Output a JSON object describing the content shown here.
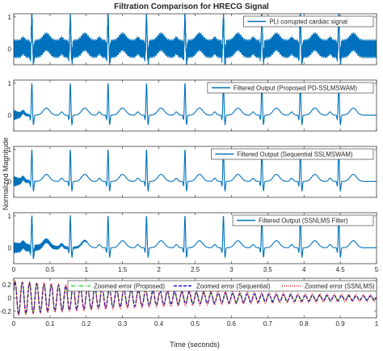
{
  "figure": {
    "title": "Filtration Comparison for HRECG Signal",
    "ylabel": "Normalized Magnitude",
    "xlabel": "Time (seconds)"
  },
  "colors": {
    "axis": "#262626",
    "signal": "#0072BD",
    "proposed": "#33dd33",
    "sequential": "#1010e0",
    "ssnlms": "#e01010"
  },
  "chart_data": [
    {
      "type": "line",
      "panel": 1,
      "legend": [
        "PLI corrupted cardiac signal"
      ],
      "legend_position": "top-right",
      "xlim": [
        0,
        5
      ],
      "ylim": [
        -0.5,
        1.1
      ],
      "yticks": [
        "0",
        "1"
      ],
      "xtick_labels_shown": false,
      "series": [
        {
          "name": "PLI corrupted cardiac signal",
          "beat_times": [
            0.25,
            0.78,
            1.3,
            1.83,
            2.36,
            2.89,
            3.42,
            3.95,
            4.48
          ],
          "r_peak": 1.0,
          "pli_amplitude": 0.3
        }
      ]
    },
    {
      "type": "line",
      "panel": 2,
      "legend": [
        "Filtered Output (Proposed PD-SSLMSWAM)"
      ],
      "legend_position": "top-right",
      "xlim": [
        0,
        5
      ],
      "ylim": [
        -0.5,
        1.1
      ],
      "yticks": [
        "0",
        "1"
      ],
      "xtick_labels_shown": false,
      "series": [
        {
          "name": "Filtered Output (Proposed PD-SSLMSWAM)",
          "beat_times": [
            0.25,
            0.78,
            1.3,
            1.83,
            2.36,
            2.89,
            3.42,
            3.95,
            4.48
          ],
          "r_peak": 1.0,
          "residual_until_s": 0.25
        }
      ]
    },
    {
      "type": "line",
      "panel": 3,
      "legend": [
        "Filtered Output (Sequential SSLMSWAM)"
      ],
      "legend_position": "top-right",
      "xlim": [
        0,
        5
      ],
      "ylim": [
        -0.5,
        1.1
      ],
      "yticks": [
        "0",
        "1"
      ],
      "xtick_labels_shown": false,
      "series": [
        {
          "name": "Filtered Output (Sequential SSLMSWAM)",
          "beat_times": [
            0.25,
            0.78,
            1.3,
            1.83,
            2.36,
            2.89,
            3.42,
            3.95,
            4.48
          ],
          "r_peak": 1.0,
          "residual_until_s": 0.3
        }
      ]
    },
    {
      "type": "line",
      "panel": 4,
      "legend": [
        "Filtered Output (SSNLMS Filter)"
      ],
      "legend_position": "top-right",
      "xlim": [
        0,
        5
      ],
      "ylim": [
        -0.5,
        1.1
      ],
      "yticks": [
        "0",
        "1"
      ],
      "xtick_labels": [
        "0",
        "0.5",
        "1",
        "1.5",
        "2",
        "2.5",
        "3",
        "3.5",
        "4",
        "4.5",
        "5"
      ],
      "series": [
        {
          "name": "Filtered Output (SSNLMS Filter)",
          "beat_times": [
            0.25,
            0.78,
            1.3,
            1.83,
            2.36,
            2.89,
            3.42,
            3.95,
            4.48
          ],
          "r_peak": 1.0,
          "residual_until_s": 1.0
        }
      ]
    },
    {
      "type": "line",
      "panel": 5,
      "legend": [
        "Zoomed error (Proposed)",
        "Zoomed error (Sequential)",
        "Zoomed error (SSNLMS)"
      ],
      "legend_position": "top",
      "xlim": [
        0,
        1
      ],
      "ylim": [
        -0.3,
        0.3
      ],
      "yticks": [
        "-0.2",
        "0",
        "0.2"
      ],
      "xtick_labels": [
        "0",
        "0.1",
        "0.2",
        "0.3",
        "0.4",
        "0.5",
        "0.6",
        "0.7",
        "0.8",
        "0.9",
        "1"
      ],
      "xlabel": "Time (seconds)",
      "series": [
        {
          "name": "Zoomed error (Proposed)",
          "style": "dash-dot",
          "frequency_hz": 50,
          "amplitude_start": 0.25,
          "amplitude_end": 0.02
        },
        {
          "name": "Zoomed error (Sequential)",
          "style": "dashed",
          "frequency_hz": 50,
          "amplitude_start": 0.25,
          "amplitude_end": 0.03
        },
        {
          "name": "Zoomed error (SSNLMS)",
          "style": "dotted",
          "frequency_hz": 50,
          "amplitude_start": 0.26,
          "amplitude_end": 0.05
        }
      ]
    }
  ]
}
